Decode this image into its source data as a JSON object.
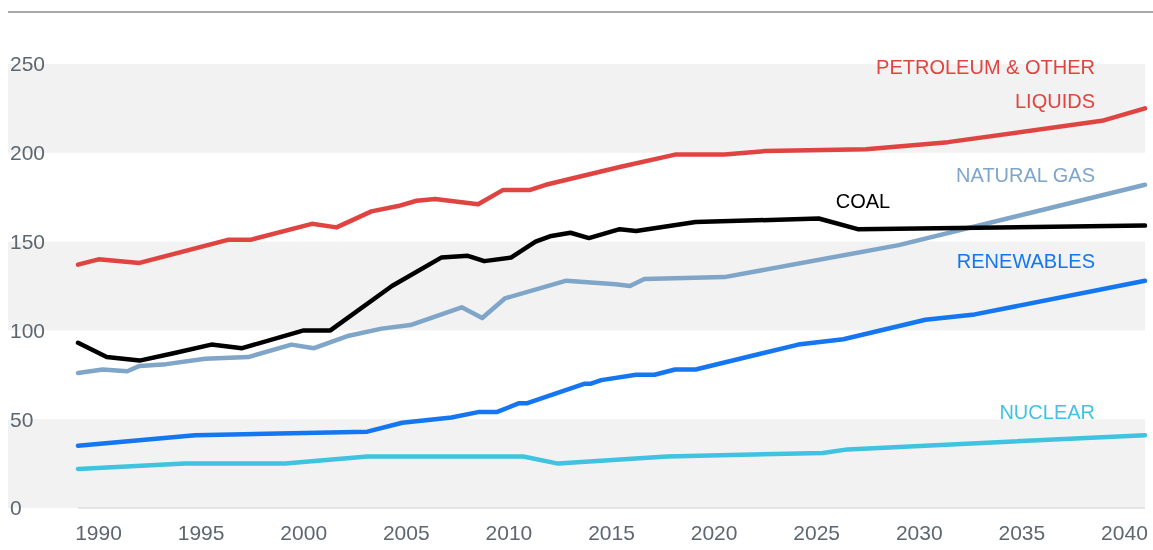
{
  "chart_data": {
    "type": "line",
    "xlim": [
      1989,
      2041
    ],
    "xticks": [
      1990,
      1995,
      2000,
      2005,
      2010,
      2015,
      2020,
      2025,
      2030,
      2035,
      2040
    ],
    "ylim": [
      0,
      250
    ],
    "yticks": [
      0,
      50,
      100,
      150,
      200,
      250
    ],
    "bands": [
      {
        "axis": "y",
        "from": 0,
        "to": 50,
        "color": "#f2f2f2"
      },
      {
        "axis": "y",
        "from": 100,
        "to": 150,
        "color": "#f2f2f2"
      },
      {
        "axis": "y",
        "from": 200,
        "to": 250,
        "color": "#f2f2f2"
      }
    ],
    "line_style": "solid",
    "marker": "none",
    "series": [
      {
        "name": "PETROLEUM & OTHER LIQUIDS",
        "color": "#e04440",
        "x": [
          1989,
          1990,
          1992,
          1996.3,
          1997.4,
          2000.4,
          2001.6,
          2003.3,
          2004.6,
          2005.5,
          2006.4,
          2008.5,
          2009.7,
          2011,
          2011.8,
          2015.4,
          2018.1,
          2020.5,
          2022.5,
          2027.4,
          2031.4,
          2038.9,
          2041
        ],
        "values": [
          137,
          140,
          138,
          151,
          151,
          160,
          158,
          167,
          170,
          173,
          174,
          171,
          179,
          179,
          182,
          192,
          199,
          199,
          201,
          202,
          206,
          218,
          225
        ]
      },
      {
        "name": "NATURAL GAS",
        "color": "#7fa5c8",
        "x": [
          1989,
          1990.2,
          1991.4,
          1992,
          1993.3,
          1995.2,
          1997.3,
          1999.4,
          2000.5,
          2002.2,
          2003.8,
          2005.2,
          2007.7,
          2008.7,
          2009.8,
          2012.8,
          2015.2,
          2015.9,
          2016.6,
          2020.5,
          2029,
          2041
        ],
        "values": [
          76,
          78,
          77,
          80,
          81,
          84,
          85,
          92,
          90,
          97,
          101,
          103,
          113,
          107,
          118,
          128,
          126,
          125,
          129,
          130,
          148,
          182
        ]
      },
      {
        "name": "COAL",
        "color": "#000000",
        "x": [
          1989,
          1990.4,
          1992,
          1993.6,
          1995.5,
          1997,
          2000,
          2001.3,
          2004.3,
          2006.7,
          2008,
          2008.8,
          2010.1,
          2011.3,
          2012,
          2013,
          2013.9,
          2015.4,
          2016.2,
          2019.1,
          2025.1,
          2027,
          2041
        ],
        "values": [
          93,
          85,
          83,
          87,
          92,
          90,
          100,
          100,
          125,
          141,
          142,
          139,
          141,
          150,
          153,
          155,
          152,
          157,
          156,
          161,
          163,
          157,
          159
        ]
      },
      {
        "name": "RENEWABLES",
        "color": "#1476f0",
        "x": [
          1989,
          1994.7,
          2003.1,
          2004.8,
          2007.2,
          2008.5,
          2009.4,
          2010.5,
          2010.9,
          2013.7,
          2014,
          2014.5,
          2016.2,
          2017.1,
          2018.1,
          2019.1,
          2024.1,
          2026.3,
          2030.3,
          2032.7,
          2041
        ],
        "values": [
          35,
          41,
          43,
          48,
          51,
          54,
          54,
          59,
          59,
          70,
          70,
          72,
          75,
          75,
          78,
          78,
          92,
          95,
          106,
          109,
          128
        ]
      },
      {
        "name": "NUCLEAR",
        "color": "#3fc3e0",
        "x": [
          1989,
          1994.2,
          1999.1,
          2003.1,
          2010.7,
          2012.4,
          2017.7,
          2025.3,
          2026.5,
          2041
        ],
        "values": [
          22,
          25,
          25,
          29,
          29,
          25,
          29,
          31,
          33,
          41
        ]
      }
    ]
  }
}
